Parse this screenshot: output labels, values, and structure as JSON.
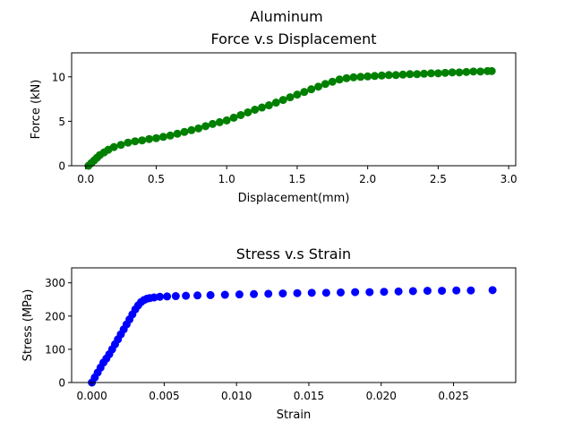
{
  "figure": {
    "suptitle": "Aluminum"
  },
  "chart_data": [
    {
      "type": "scatter",
      "title": "Force v.s Displacement",
      "xlabel": "Displacement(mm)",
      "ylabel": "Force (kN)",
      "xlim": [
        -0.1,
        3.05
      ],
      "ylim": [
        0,
        12.7
      ],
      "xticks": [
        0.0,
        0.5,
        1.0,
        1.5,
        2.0,
        2.5,
        3.0
      ],
      "xtick_labels": [
        "0.0",
        "0.5",
        "1.0",
        "1.5",
        "2.0",
        "2.5",
        "3.0"
      ],
      "yticks": [
        0,
        5,
        10
      ],
      "ytick_labels": [
        "0",
        "5",
        "10"
      ],
      "grid": false,
      "color": "#008000",
      "series": [
        {
          "x": [
            0.02,
            0.04,
            0.06,
            0.08,
            0.1,
            0.13,
            0.16,
            0.2,
            0.25,
            0.3,
            0.35,
            0.4,
            0.45,
            0.5,
            0.55,
            0.6,
            0.65,
            0.7,
            0.75,
            0.8,
            0.85,
            0.9,
            0.95,
            1.0,
            1.05,
            1.1,
            1.15,
            1.2,
            1.25,
            1.3,
            1.35,
            1.4,
            1.45,
            1.5,
            1.55,
            1.6,
            1.65,
            1.7,
            1.75,
            1.8,
            1.85,
            1.9,
            1.95,
            2.0,
            2.05,
            2.1,
            2.15,
            2.2,
            2.25,
            2.3,
            2.35,
            2.4,
            2.45,
            2.5,
            2.55,
            2.6,
            2.65,
            2.7,
            2.75,
            2.8,
            2.85,
            2.88
          ],
          "y": [
            0.0,
            0.3,
            0.6,
            0.9,
            1.2,
            1.5,
            1.8,
            2.1,
            2.35,
            2.6,
            2.75,
            2.85,
            3.0,
            3.1,
            3.25,
            3.4,
            3.6,
            3.8,
            4.0,
            4.2,
            4.45,
            4.7,
            4.9,
            5.1,
            5.4,
            5.7,
            6.0,
            6.3,
            6.55,
            6.8,
            7.1,
            7.4,
            7.7,
            8.0,
            8.3,
            8.6,
            8.9,
            9.2,
            9.45,
            9.7,
            9.85,
            9.95,
            10.0,
            10.05,
            10.1,
            10.15,
            10.2,
            10.2,
            10.25,
            10.3,
            10.3,
            10.35,
            10.4,
            10.4,
            10.45,
            10.5,
            10.5,
            10.55,
            10.6,
            10.6,
            10.65,
            10.65
          ]
        }
      ]
    },
    {
      "type": "scatter",
      "title": "Stress v.s Strain",
      "xlabel": "Strain",
      "ylabel": "Stress (MPa)",
      "xlim": [
        -0.0014,
        0.0293
      ],
      "ylim": [
        0,
        345
      ],
      "xticks": [
        0.0,
        0.005,
        0.01,
        0.015,
        0.02,
        0.025
      ],
      "xtick_labels": [
        "0.000",
        "0.005",
        "0.010",
        "0.015",
        "0.020",
        "0.025"
      ],
      "yticks": [
        0,
        100,
        200,
        300
      ],
      "ytick_labels": [
        "0",
        "100",
        "200",
        "300"
      ],
      "grid": false,
      "color": "#0000ff",
      "series": [
        {
          "x": [
            0.0,
            0.0002,
            0.0004,
            0.0006,
            0.0008,
            0.001,
            0.0012,
            0.0014,
            0.0016,
            0.0018,
            0.002,
            0.0022,
            0.0024,
            0.0026,
            0.0028,
            0.003,
            0.0032,
            0.0034,
            0.0036,
            0.0038,
            0.004,
            0.0043,
            0.0047,
            0.0052,
            0.0058,
            0.0065,
            0.0073,
            0.0082,
            0.0092,
            0.0102,
            0.0112,
            0.0122,
            0.0132,
            0.0142,
            0.0152,
            0.0162,
            0.0172,
            0.0182,
            0.0192,
            0.0202,
            0.0212,
            0.0222,
            0.0232,
            0.0242,
            0.0252,
            0.0262,
            0.0277
          ],
          "y": [
            0,
            15,
            30,
            45,
            60,
            72,
            85,
            100,
            115,
            130,
            145,
            160,
            175,
            190,
            205,
            220,
            232,
            242,
            248,
            252,
            254,
            256,
            258,
            259,
            260,
            261,
            262,
            263,
            264,
            265,
            266,
            267,
            268,
            269,
            270,
            270,
            271,
            272,
            272,
            273,
            274,
            275,
            276,
            276,
            277,
            277,
            278
          ]
        }
      ]
    }
  ]
}
